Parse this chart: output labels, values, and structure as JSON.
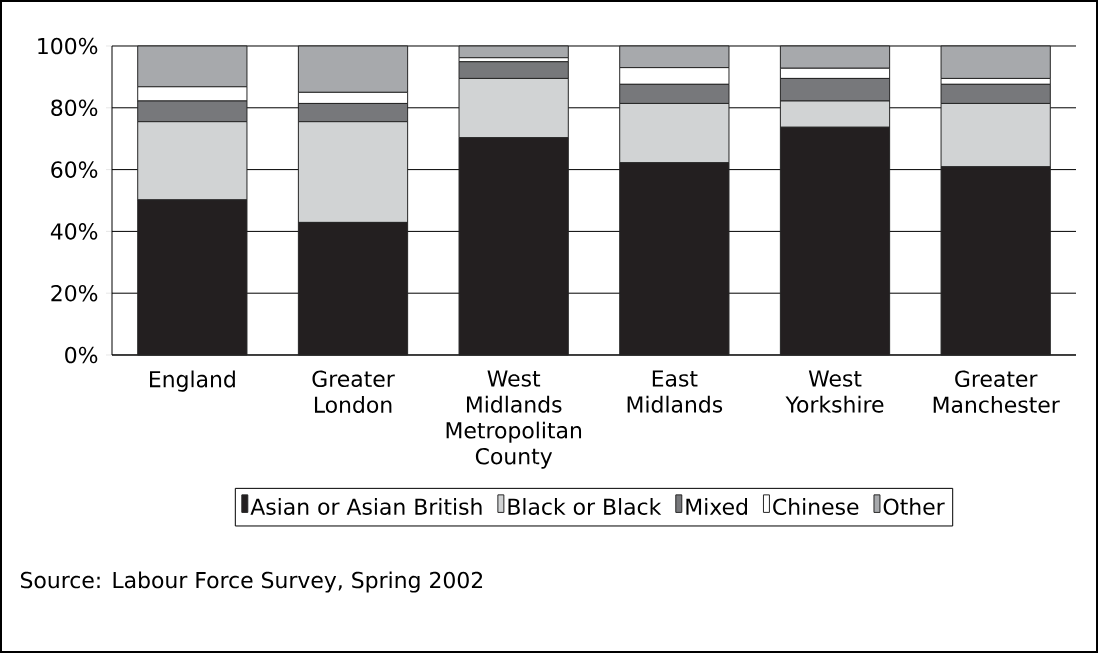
{
  "chart_data": {
    "type": "bar",
    "stacked": true,
    "categories": [
      "England",
      "Greater London",
      "West Midlands Metropolitan County",
      "East Midlands",
      "West Yorkshire",
      "Greater Manchester"
    ],
    "series": [
      {
        "name": "Asian or Asian British",
        "color": "#231f20",
        "values": [
          50.2,
          42.9,
          70.3,
          62.2,
          73.7,
          60.9
        ]
      },
      {
        "name": "Black or Black",
        "color": "#d1d3d4",
        "values": [
          25.3,
          32.6,
          19.2,
          19.2,
          8.5,
          20.5
        ]
      },
      {
        "name": "Mixed",
        "color": "#77787b",
        "values": [
          6.7,
          5.9,
          5.4,
          6.2,
          7.3,
          6.2
        ]
      },
      {
        "name": "Chinese",
        "color": "#ffffff",
        "values": [
          4.6,
          3.6,
          1.3,
          5.4,
          3.3,
          1.9
        ]
      },
      {
        "name": "Other",
        "color": "#a7a9ac",
        "values": [
          13.2,
          15.0,
          3.8,
          7.0,
          7.2,
          10.5
        ]
      }
    ],
    "ylim": [
      0,
      100
    ],
    "yticks": [
      {
        "value": 0,
        "label": "0%"
      },
      {
        "value": 20,
        "label": "20%"
      },
      {
        "value": 40,
        "label": "40%"
      },
      {
        "value": 60,
        "label": "60%"
      },
      {
        "value": 80,
        "label": "80%"
      },
      {
        "value": 100,
        "label": "100%"
      }
    ],
    "grid": "y",
    "legend": "bottom",
    "annotations": [
      "Source: Labour Force Survey, Spring 2002"
    ]
  }
}
